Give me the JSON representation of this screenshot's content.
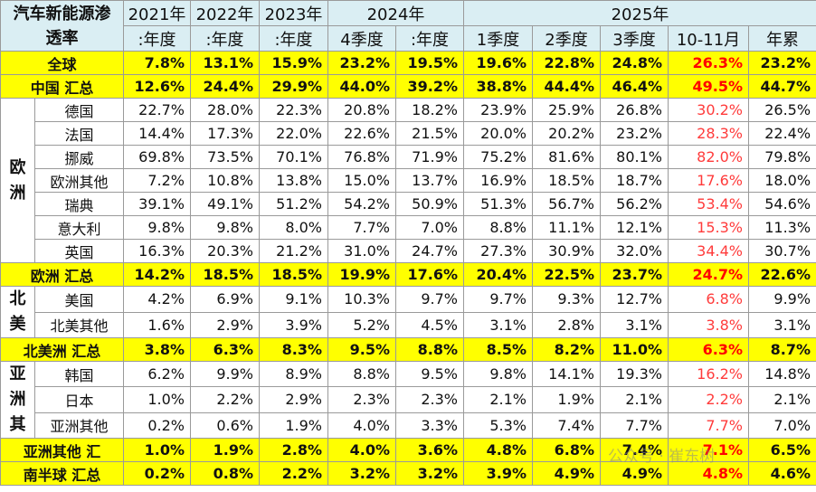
{
  "header": {
    "corner": "汽车新能源渗透率",
    "years": [
      "2021年",
      "2022年",
      "2023年",
      "2024年",
      "2025年"
    ],
    "subheaders": [
      ":年度",
      ":年度",
      ":年度",
      "4季度",
      ":年度",
      "1季度",
      "2季度",
      "3季度",
      "10-11月",
      "年累"
    ]
  },
  "table": {
    "rows": [
      {
        "label": "全球",
        "values": [
          "7.8%",
          "13.1%",
          "15.9%",
          "23.2%",
          "19.5%",
          "19.6%",
          "22.8%",
          "24.8%",
          "26.3%",
          "23.2%"
        ]
      },
      {
        "label": "中国 汇总",
        "values": [
          "12.6%",
          "24.4%",
          "29.9%",
          "44.0%",
          "39.2%",
          "38.8%",
          "44.4%",
          "46.4%",
          "49.5%",
          "44.7%"
        ]
      },
      {
        "region": "欧洲",
        "rows": [
          {
            "label": "德国",
            "values": [
              "22.7%",
              "28.0%",
              "22.3%",
              "20.8%",
              "18.2%",
              "23.9%",
              "25.9%",
              "26.8%",
              "30.2%",
              "26.5%"
            ]
          },
          {
            "label": "法国",
            "values": [
              "14.4%",
              "17.3%",
              "22.0%",
              "22.6%",
              "21.5%",
              "20.0%",
              "20.2%",
              "23.2%",
              "28.3%",
              "22.4%"
            ]
          },
          {
            "label": "挪威",
            "values": [
              "69.8%",
              "73.5%",
              "70.1%",
              "76.8%",
              "71.9%",
              "75.2%",
              "81.6%",
              "80.1%",
              "82.0%",
              "79.8%"
            ]
          },
          {
            "label": "欧洲其他",
            "values": [
              "7.2%",
              "10.8%",
              "13.8%",
              "15.0%",
              "13.7%",
              "16.9%",
              "18.5%",
              "18.7%",
              "17.6%",
              "18.0%"
            ]
          },
          {
            "label": "瑞典",
            "values": [
              "39.1%",
              "49.1%",
              "51.2%",
              "54.2%",
              "50.9%",
              "51.3%",
              "56.7%",
              "56.2%",
              "53.4%",
              "54.6%"
            ]
          },
          {
            "label": "意大利",
            "values": [
              "9.8%",
              "9.8%",
              "8.0%",
              "7.7%",
              "7.0%",
              "8.8%",
              "11.1%",
              "12.1%",
              "15.3%",
              "11.3%"
            ]
          },
          {
            "label": "英国",
            "values": [
              "16.3%",
              "20.3%",
              "21.2%",
              "31.0%",
              "24.7%",
              "27.3%",
              "30.9%",
              "32.0%",
              "34.4%",
              "30.7%"
            ]
          }
        ]
      },
      {
        "label": "欧洲 汇总",
        "values": [
          "14.2%",
          "18.5%",
          "18.5%",
          "19.9%",
          "17.6%",
          "20.4%",
          "22.5%",
          "23.7%",
          "24.7%",
          "22.6%"
        ]
      },
      {
        "region": "北美",
        "rows": [
          {
            "label": "美国",
            "values": [
              "4.2%",
              "6.9%",
              "9.1%",
              "10.3%",
              "9.7%",
              "9.7%",
              "9.3%",
              "12.7%",
              "6.8%",
              "9.9%"
            ]
          },
          {
            "label": "北美其他",
            "values": [
              "1.6%",
              "2.9%",
              "3.9%",
              "5.2%",
              "4.5%",
              "3.1%",
              "2.8%",
              "3.1%",
              "3.8%",
              "3.1%"
            ]
          }
        ]
      },
      {
        "label": "北美洲 汇总",
        "values": [
          "3.8%",
          "6.3%",
          "8.3%",
          "9.5%",
          "8.8%",
          "8.5%",
          "8.2%",
          "11.0%",
          "6.3%",
          "8.7%"
        ]
      },
      {
        "region": "亚洲其",
        "rows": [
          {
            "label": "韩国",
            "values": [
              "6.2%",
              "9.9%",
              "8.9%",
              "8.8%",
              "9.5%",
              "9.8%",
              "14.1%",
              "19.3%",
              "16.2%",
              "14.8%"
            ]
          },
          {
            "label": "日本",
            "values": [
              "1.0%",
              "2.2%",
              "2.9%",
              "2.3%",
              "2.3%",
              "2.1%",
              "1.9%",
              "2.1%",
              "2.2%",
              "2.1%"
            ]
          },
          {
            "label": "亚洲其他",
            "values": [
              "0.2%",
              "0.6%",
              "1.9%",
              "4.0%",
              "3.3%",
              "5.3%",
              "7.4%",
              "7.7%",
              "7.7%",
              "7.0%"
            ]
          }
        ]
      },
      {
        "label": "亚洲其他 汇",
        "values": [
          "1.0%",
          "1.9%",
          "2.8%",
          "4.0%",
          "3.6%",
          "4.8%",
          "6.8%",
          "7.4%",
          "7.1%",
          "6.5%"
        ]
      },
      {
        "label": "南半球 汇总",
        "values": [
          "0.2%",
          "0.8%",
          "2.2%",
          "3.2%",
          "3.2%",
          "3.9%",
          "4.9%",
          "4.9%",
          "4.8%",
          "4.6%"
        ]
      }
    ]
  },
  "watermark": "公众号 · 崔东树"
}
